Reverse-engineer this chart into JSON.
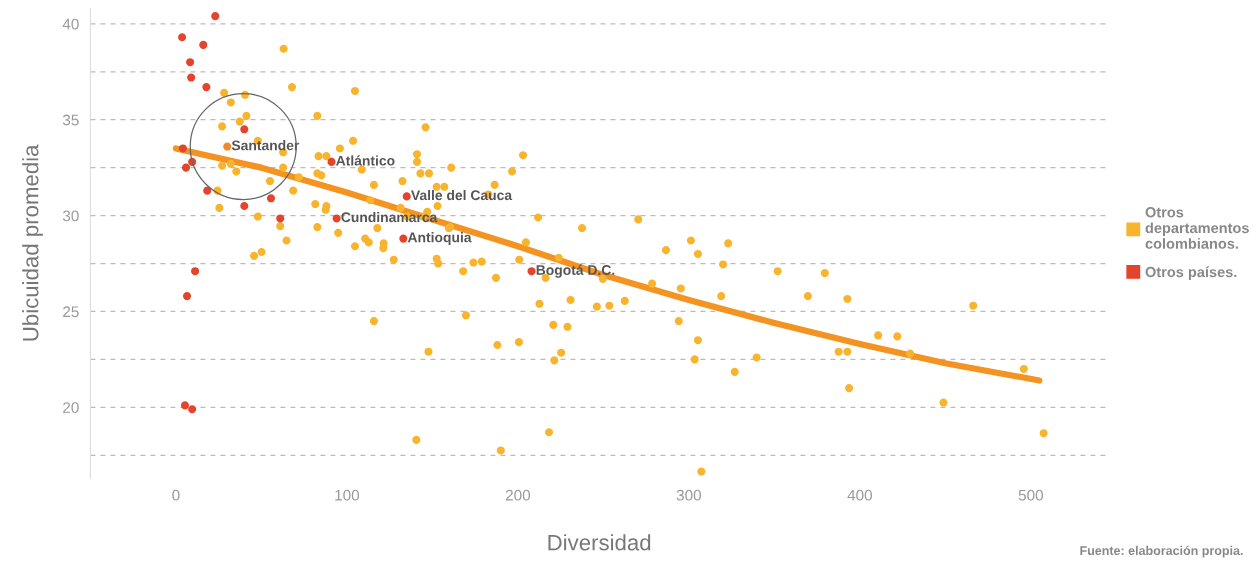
{
  "chart_data": {
    "type": "scatter",
    "xlabel": "Diversidad",
    "ylabel": "Ubicuidad promedia",
    "xlim": [
      -50,
      545
    ],
    "xticks": [
      0,
      100,
      200,
      300,
      400,
      500
    ],
    "ylim": [
      16.3,
      40.8
    ],
    "yticks": [
      {
        "value": 17.5,
        "label": null
      },
      20,
      {
        "value": 22.5,
        "label": null
      },
      25,
      {
        "value": 27.5,
        "label": null
      },
      30,
      {
        "value": 32.5,
        "label": null
      },
      35,
      {
        "value": 37.5,
        "label": null
      },
      40
    ],
    "grid": "y",
    "legend": "right",
    "marker": "circle",
    "series": [
      {
        "name": "Otros departamentos colombianos.",
        "color": "#f9b42d",
        "x": [
          63,
          28.2,
          40.4,
          67.9,
          104.7,
          32.1,
          41.2,
          82.7,
          37.3,
          27,
          47.9,
          146,
          95.9,
          103.6,
          62.7,
          83.4,
          88,
          141,
          141,
          32.1,
          27,
          35.3,
          62.7,
          108.7,
          82.7,
          85,
          143,
          148,
          55,
          71.8,
          115.8,
          132.5,
          68.6,
          24.3,
          113.6,
          152.5,
          157,
          81.5,
          88,
          87.6,
          25.4,
          131.4,
          153,
          147,
          144.4,
          47.9,
          61,
          82.7,
          94.9,
          117.8,
          135.3,
          159.6,
          64.7,
          110.7,
          112.8,
          121.5,
          45.7,
          50.1,
          104.7,
          121.3,
          127.4,
          152.5,
          153.4,
          115.8,
          147.7,
          140.6,
          203,
          161,
          196.6,
          186.4,
          182.7,
          211.8,
          270.4,
          160.4,
          237.5,
          204.7,
          301.2,
          323,
          286.6,
          305.3,
          223.9,
          200.8,
          174,
          178.9,
          320,
          168,
          187.2,
          216.2,
          249.7,
          278.5,
          295.3,
          318.9,
          212.6,
          230.8,
          246.2,
          253.5,
          262.5,
          169.6,
          294.1,
          220.7,
          229,
          305.3,
          188,
          200.6,
          225.3,
          221.3,
          303.4,
          339.6,
          326.8,
          218.2,
          190,
          307.3,
          351.9,
          379.5,
          369.6,
          392.7,
          466.3,
          410.7,
          421.9,
          429.4,
          387.6,
          392.7,
          393.7,
          448.9,
          495.9,
          507.5
        ],
        "values": [
          38.7,
          36.4,
          36.3,
          36.7,
          36.5,
          35.9,
          35.2,
          35.2,
          34.9,
          34.65,
          33.9,
          34.6,
          33.5,
          33.9,
          33.3,
          33.1,
          33.1,
          33.2,
          32.8,
          32.7,
          32.6,
          32.3,
          32.5,
          32.4,
          32.2,
          32.1,
          32.2,
          32.2,
          31.8,
          32,
          31.6,
          31.8,
          31.3,
          31.3,
          30.8,
          31.5,
          31.5,
          30.6,
          30.5,
          30.3,
          30.4,
          30.4,
          30.5,
          30.2,
          29.95,
          29.95,
          29.45,
          29.4,
          29.1,
          29.35,
          29.95,
          29.35,
          28.7,
          28.8,
          28.6,
          28.55,
          27.9,
          28.1,
          28.4,
          28.3,
          27.7,
          27.75,
          27.5,
          24.5,
          22.9,
          18.3,
          33.15,
          32.5,
          32.3,
          31.6,
          31.1,
          29.9,
          29.8,
          29.4,
          29.35,
          28.6,
          28.7,
          28.55,
          28.2,
          28,
          27.8,
          27.7,
          27.55,
          27.6,
          27.45,
          27.1,
          26.75,
          26.75,
          26.7,
          26.45,
          26.2,
          25.8,
          25.4,
          25.6,
          25.25,
          25.3,
          25.55,
          24.8,
          24.5,
          24.3,
          24.2,
          23.5,
          23.25,
          23.4,
          22.85,
          22.45,
          22.5,
          22.6,
          21.85,
          18.7,
          17.75,
          16.65,
          27.1,
          27,
          25.8,
          25.65,
          25.3,
          23.75,
          23.7,
          22.8,
          22.9,
          22.9,
          21,
          20.25,
          22,
          18.65
        ]
      },
      {
        "name": "Otros países.",
        "color": "#e2452b",
        "x": [
          3.6,
          23,
          16,
          8.3,
          8.9,
          17.8,
          40,
          4.1,
          9.5,
          5.9,
          18.3,
          55.6,
          40,
          61,
          11.2,
          6.5,
          5.3,
          9.5,
          91,
          135,
          94,
          133,
          208
        ],
        "values": [
          39.3,
          40.4,
          38.9,
          38,
          37.2,
          36.7,
          34.5,
          33.5,
          32.8,
          32.5,
          31.3,
          30.9,
          30.5,
          29.85,
          27.1,
          25.8,
          20.1,
          19.9,
          32.8,
          31,
          29.85,
          28.8,
          27.1
        ]
      },
      {
        "color": "#f08a2e",
        "x": [
          30
        ],
        "values": [
          33.6
        ]
      },
      {
        "type": "line",
        "color": "#f39322",
        "marker": "none",
        "x": [
          0,
          50,
          100,
          150,
          200,
          250,
          300,
          350,
          400,
          450,
          505
        ],
        "values": [
          33.5,
          32.5,
          31.2,
          29.8,
          28.4,
          26.9,
          25.6,
          24.4,
          23.3,
          22.3,
          21.4
        ]
      }
    ],
    "annotations": [
      {
        "text": "Santander",
        "x": 30,
        "y": 33.6
      },
      {
        "text": "Atlántico",
        "x": 91,
        "y": 32.8
      },
      {
        "text": "Valle del Cauca",
        "x": 135,
        "y": 31
      },
      {
        "text": "Cundinamarca",
        "x": 94,
        "y": 29.85
      },
      {
        "text": "Antioquia",
        "x": 133,
        "y": 28.8
      },
      {
        "text": "Bogotá D.C.",
        "x": 208,
        "y": 27.1
      },
      "Fuente: elaboración propia."
    ]
  }
}
